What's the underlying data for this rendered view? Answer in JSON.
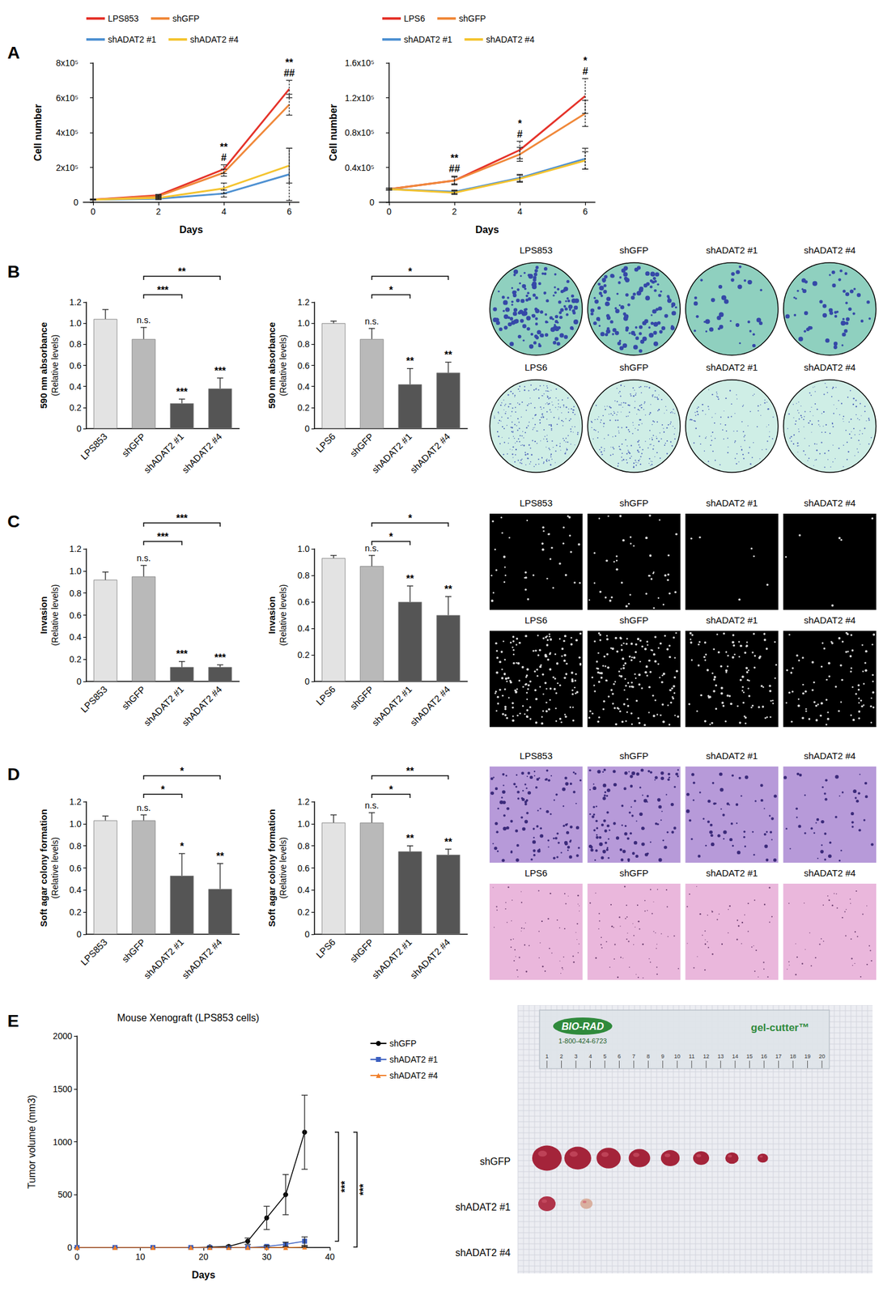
{
  "chart_data": [
    {
      "type": "line",
      "x_label": "Days",
      "y_label": "Cell number",
      "x": [
        0,
        2,
        4,
        6
      ],
      "xlim": [
        -0.3,
        6.3
      ],
      "xticks": [
        0,
        2,
        4,
        6
      ],
      "ylim": [
        0,
        800000
      ],
      "yticks": [
        0,
        {
          "value": 200000,
          "label": "2x10⁵"
        },
        {
          "value": 400000,
          "label": "4x10⁵"
        },
        {
          "value": 600000,
          "label": "6x10⁵"
        },
        {
          "value": 800000,
          "label": "8x10⁵"
        }
      ],
      "legend": "top",
      "series": [
        {
          "name": "LPS853",
          "color": "#e5332a",
          "values": [
            15000,
            40000,
            190000,
            650000
          ],
          "errors": [
            2000,
            5000,
            25000,
            50000
          ]
        },
        {
          "name": "shGFP",
          "color": "#f0883a",
          "values": [
            15000,
            35000,
            170000,
            560000
          ],
          "errors": [
            2000,
            5000,
            20000,
            60000
          ]
        },
        {
          "name": "shADAT2 #1",
          "color": "#4e91d2",
          "values": [
            15000,
            20000,
            50000,
            160000
          ],
          "errors": [
            2000,
            5000,
            20000,
            150000
          ]
        },
        {
          "name": "shADAT2 #4",
          "color": "#f4c430",
          "values": [
            15000,
            25000,
            80000,
            210000
          ],
          "errors": [
            2000,
            5000,
            30000,
            100000
          ]
        }
      ],
      "annotations": [
        {
          "x": 4,
          "texts": [
            "**",
            "#"
          ]
        },
        {
          "x": 6,
          "texts": [
            "**",
            "##"
          ]
        }
      ]
    },
    {
      "type": "line",
      "x_label": "Days",
      "y_label": "Cell number",
      "x": [
        0,
        2,
        4,
        6
      ],
      "xlim": [
        -0.3,
        6.3
      ],
      "xticks": [
        0,
        2,
        4,
        6
      ],
      "ylim": [
        0,
        160000
      ],
      "yticks": [
        0,
        {
          "value": 40000,
          "label": "0.4x10⁵"
        },
        {
          "value": 80000,
          "label": "0.8x10⁵"
        },
        {
          "value": 120000,
          "label": "1.2x10⁵"
        },
        {
          "value": 160000,
          "label": "1.6x10⁵"
        }
      ],
      "legend": "top",
      "series": [
        {
          "name": "LPS6",
          "color": "#e5332a",
          "values": [
            15000,
            25000,
            60000,
            122000
          ],
          "errors": [
            1000,
            5000,
            10000,
            20000
          ]
        },
        {
          "name": "shGFP",
          "color": "#f0883a",
          "values": [
            15000,
            25000,
            55000,
            102000
          ],
          "errors": [
            1000,
            4000,
            8000,
            15000
          ]
        },
        {
          "name": "shADAT2 #1",
          "color": "#4e91d2",
          "values": [
            15000,
            12000,
            28000,
            50000
          ],
          "errors": [
            1000,
            2000,
            4000,
            12000
          ]
        },
        {
          "name": "shADAT2 #4",
          "color": "#f4c430",
          "values": [
            15000,
            11000,
            27000,
            48000
          ],
          "errors": [
            1000,
            2000,
            4000,
            10000
          ]
        }
      ],
      "annotations": [
        {
          "x": 2,
          "texts": [
            "**",
            "##"
          ]
        },
        {
          "x": 4,
          "texts": [
            "*",
            "#"
          ]
        },
        {
          "x": 6,
          "texts": [
            "*",
            "#"
          ]
        }
      ]
    },
    {
      "type": "bar",
      "categories": [
        "LPS853",
        "shGFP",
        "shADAT2 #1",
        "shADAT2 #4"
      ],
      "values": [
        1.04,
        0.85,
        0.24,
        0.38
      ],
      "errors": [
        0.09,
        0.11,
        0.04,
        0.1
      ],
      "colors": [
        "#e3e3e3",
        "#b9b9b9",
        "#555555",
        "#555555"
      ],
      "y_label": "590 nm absorbance",
      "y_sublabel": "(Relative levels)",
      "ylim": [
        0,
        1.2
      ],
      "yticks": [
        0,
        0.2,
        0.4,
        0.6,
        0.8,
        {
          "value": 1,
          "label": "1.0"
        },
        1.2
      ],
      "bar_annotations": [
        null,
        "n.s.",
        "***",
        "***"
      ],
      "brackets": [
        {
          "from": "shGFP",
          "to": "shADAT2 #1",
          "text": "***"
        },
        {
          "from": "shGFP",
          "to": "shADAT2 #4",
          "text": "**"
        }
      ]
    },
    {
      "type": "bar",
      "categories": [
        "LPS6",
        "shGFP",
        "shADAT2 #1",
        "shADAT2 #4"
      ],
      "values": [
        1.0,
        0.85,
        0.42,
        0.53
      ],
      "errors": [
        0.02,
        0.1,
        0.15,
        0.1
      ],
      "colors": [
        "#e3e3e3",
        "#b9b9b9",
        "#555555",
        "#555555"
      ],
      "y_label": "590 nm absorbance",
      "y_sublabel": "(Relative levels)",
      "ylim": [
        0,
        1.2
      ],
      "yticks": [
        0,
        0.2,
        0.4,
        0.6,
        0.8,
        {
          "value": 1,
          "label": "1.0"
        },
        1.2
      ],
      "bar_annotations": [
        null,
        "n.s.",
        "**",
        "**"
      ],
      "brackets": [
        {
          "from": "shGFP",
          "to": "shADAT2 #1",
          "text": "*"
        },
        {
          "from": "shGFP",
          "to": "shADAT2 #4",
          "text": "*"
        }
      ]
    },
    {
      "type": "bar",
      "categories": [
        "LPS853",
        "shGFP",
        "shADAT2 #1",
        "shADAT2 #4"
      ],
      "values": [
        0.92,
        0.95,
        0.13,
        0.13
      ],
      "errors": [
        0.07,
        0.1,
        0.05,
        0.02
      ],
      "colors": [
        "#e3e3e3",
        "#b9b9b9",
        "#555555",
        "#555555"
      ],
      "y_label": "Invasion",
      "y_sublabel": "(Relative levels)",
      "ylim": [
        0,
        1.2
      ],
      "yticks": [
        0,
        0.2,
        0.4,
        0.6,
        0.8,
        {
          "value": 1,
          "label": "1.0"
        },
        1.2
      ],
      "bar_annotations": [
        null,
        "n.s.",
        "***",
        "***"
      ],
      "brackets": [
        {
          "from": "shGFP",
          "to": "shADAT2 #1",
          "text": "***"
        },
        {
          "from": "shGFP",
          "to": "shADAT2 #4",
          "text": "***"
        }
      ]
    },
    {
      "type": "bar",
      "categories": [
        "LPS6",
        "shGFP",
        "shADAT2 #1",
        "shADAT2 #4"
      ],
      "values": [
        0.93,
        0.87,
        0.6,
        0.5
      ],
      "errors": [
        0.02,
        0.08,
        0.12,
        0.14
      ],
      "colors": [
        "#e3e3e3",
        "#b9b9b9",
        "#555555",
        "#555555"
      ],
      "y_label": "Invasion",
      "y_sublabel": "(Relative levels)",
      "ylim": [
        0,
        1
      ],
      "yticks": [
        0,
        0.2,
        0.4,
        0.6,
        0.8,
        {
          "value": 1,
          "label": "1.0"
        }
      ],
      "bar_annotations": [
        null,
        "n.s.",
        "**",
        "**"
      ],
      "brackets": [
        {
          "from": "shGFP",
          "to": "shADAT2 #1",
          "text": "*"
        },
        {
          "from": "shGFP",
          "to": "shADAT2 #4",
          "text": "*"
        }
      ]
    },
    {
      "type": "bar",
      "categories": [
        "LPS853",
        "shGFP",
        "shADAT2 #1",
        "shADAT2 #4"
      ],
      "values": [
        1.03,
        1.03,
        0.53,
        0.41
      ],
      "errors": [
        0.04,
        0.05,
        0.2,
        0.23
      ],
      "colors": [
        "#e3e3e3",
        "#b9b9b9",
        "#555555",
        "#555555"
      ],
      "y_label": "Soft agar colony formation",
      "y_sublabel": "(Relative levels)",
      "ylim": [
        0,
        1.2
      ],
      "yticks": [
        0,
        0.2,
        0.4,
        0.6,
        0.8,
        {
          "value": 1,
          "label": "1.0"
        },
        1.2
      ],
      "bar_annotations": [
        null,
        "n.s.",
        "*",
        "**"
      ],
      "brackets": [
        {
          "from": "shGFP",
          "to": "shADAT2 #1",
          "text": "*"
        },
        {
          "from": "shGFP",
          "to": "shADAT2 #4",
          "text": "*"
        }
      ]
    },
    {
      "type": "bar",
      "categories": [
        "LPS6",
        "shGFP",
        "shADAT2 #1",
        "shADAT2 #4"
      ],
      "values": [
        1.01,
        1.01,
        0.75,
        0.72
      ],
      "errors": [
        0.07,
        0.09,
        0.05,
        0.05
      ],
      "colors": [
        "#e3e3e3",
        "#b9b9b9",
        "#555555",
        "#555555"
      ],
      "y_label": "Soft agar colony formation",
      "y_sublabel": "(Relative levels)",
      "ylim": [
        0,
        1.2
      ],
      "yticks": [
        0,
        0.2,
        0.4,
        0.6,
        0.8,
        {
          "value": 1,
          "label": "1.0"
        },
        1.2
      ],
      "bar_annotations": [
        null,
        "n.s.",
        "**",
        "**"
      ],
      "brackets": [
        {
          "from": "shGFP",
          "to": "shADAT2 #1",
          "text": "*"
        },
        {
          "from": "shGFP",
          "to": "shADAT2 #4",
          "text": "**"
        }
      ]
    },
    {
      "type": "line",
      "title": "Mouse Xenograft (LPS853 cells)",
      "x_label": "Days",
      "y_label": "Tumor volume (mm3)",
      "x": [
        0,
        6,
        12,
        18,
        21,
        24,
        27,
        30,
        33,
        36
      ],
      "xlim": [
        0,
        40
      ],
      "xticks": [
        0,
        10,
        20,
        30,
        40
      ],
      "ylim": [
        0,
        2000
      ],
      "yticks": [
        0,
        500,
        1000,
        1500,
        2000
      ],
      "legend": "right",
      "series": [
        {
          "name": "shGFP",
          "color": "#000000",
          "marker": "circle",
          "values": [
            0,
            0,
            0,
            0,
            5,
            10,
            60,
            280,
            500,
            1090
          ],
          "errors": [
            0,
            0,
            0,
            0,
            5,
            10,
            30,
            110,
            190,
            350
          ]
        },
        {
          "name": "shADAT2 #1",
          "color": "#3b5fc0",
          "marker": "rect",
          "values": [
            0,
            0,
            0,
            0,
            0,
            0,
            0,
            10,
            30,
            60
          ],
          "errors": [
            0,
            0,
            0,
            0,
            0,
            0,
            0,
            10,
            20,
            40
          ]
        },
        {
          "name": "shADAT2 #4",
          "color": "#f07f2a",
          "marker": "triangle",
          "values": [
            0,
            0,
            0,
            0,
            0,
            0,
            0,
            0,
            0,
            5
          ],
          "errors": [
            0,
            0,
            0,
            0,
            0,
            0,
            0,
            0,
            0,
            5
          ]
        }
      ],
      "brackets": [
        {
          "from": "shGFP",
          "to": "shADAT2 #1",
          "text": "***"
        },
        {
          "from": "shGFP",
          "to": "shADAT2 #4",
          "text": "***"
        }
      ]
    }
  ],
  "panel_letters": [
    "A",
    "B",
    "C",
    "D",
    "E"
  ],
  "images": [
    {
      "rows": [
        [
          "LPS853",
          "shGFP",
          "shADAT2 #1",
          "shADAT2 #4"
        ],
        [
          "LPS6",
          "shGFP",
          "shADAT2 #1",
          "shADAT2 #4"
        ]
      ]
    },
    {
      "rows": [
        [
          "LPS853",
          "shGFP",
          "shADAT2 #1",
          "shADAT2 #4"
        ],
        [
          "LPS6",
          "shGFP",
          "shADAT2 #1",
          "shADAT2 #4"
        ]
      ]
    },
    {
      "rows": [
        [
          "LPS853",
          "shGFP",
          "shADAT2 #1",
          "shADAT2 #4"
        ],
        [
          "LPS6",
          "shGFP",
          "shADAT2 #1",
          "shADAT2 #4"
        ]
      ]
    },
    {
      "brand": "BIO-RAD",
      "phone": "1-800-424-6723",
      "product": "gel-cutter™",
      "ruler_ticks": [
        1,
        2,
        3,
        4,
        5,
        6,
        7,
        8,
        9,
        10,
        11,
        12,
        13,
        14,
        15,
        16,
        17,
        18,
        19,
        20
      ],
      "rows": [
        "shGFP",
        "shADAT2 #1",
        "shADAT2 #4"
      ],
      "tumors": [
        8,
        2,
        0
      ]
    }
  ]
}
